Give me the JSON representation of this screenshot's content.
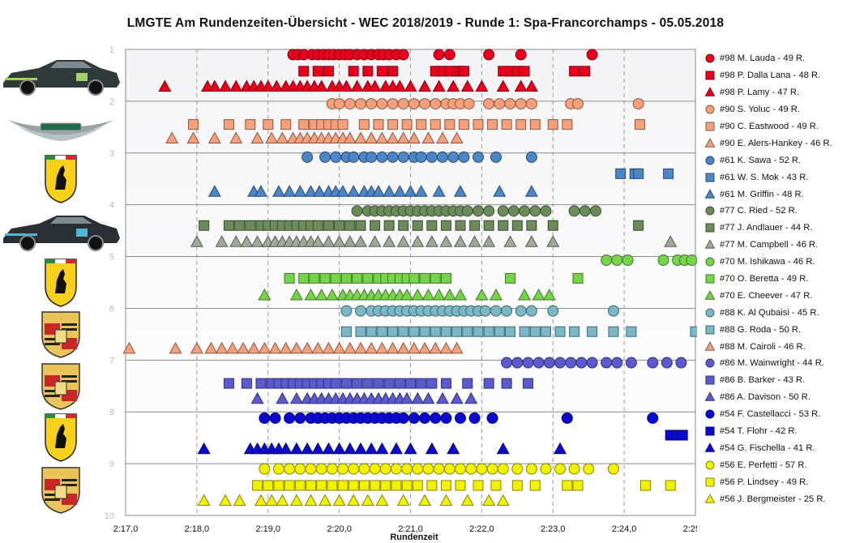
{
  "chart_data": {
    "type": "scatter",
    "title": "LMGTE  Am  Rundenzeiten-Übersicht   - WEC 2018/2019   - Runde  1:  Spa-Francorchamps   - 05.05.2018",
    "xlabel": "Rundenzeit",
    "ylabel": "",
    "x_ticks": [
      "2:17,0",
      "2:18,0",
      "2:19,0",
      "2:20,0",
      "2:21,0",
      "2:22,0",
      "2:23,0",
      "2:24,0",
      "2:25,0"
    ],
    "xlim_seconds": [
      137,
      145
    ],
    "y_ticks": [
      "1",
      "2",
      "3",
      "4",
      "5",
      "6",
      "7",
      "8",
      "9",
      "10"
    ],
    "ylim": [
      10,
      1
    ],
    "grid": "dashed-vertical, solid-horizontal",
    "legend_position": "right",
    "series": [
      {
        "name": "#98 M. Lauda - 49 R.",
        "marker": "circle",
        "color": "#e8001c",
        "row": 1.1,
        "x": [
          139.35,
          139.42,
          139.5,
          139.62,
          139.7,
          139.78,
          139.85,
          139.92,
          140.0,
          140.08,
          140.15,
          140.25,
          140.35,
          140.45,
          140.55,
          140.62,
          140.7,
          140.8,
          140.9,
          141.4,
          141.55,
          142.1,
          142.55,
          143.55
        ]
      },
      {
        "name": "#98 P. Dalla Lana - 48 R.",
        "marker": "square",
        "color": "#e8001c",
        "row": 1.42,
        "x": [
          139.5,
          139.7,
          139.85,
          140.2,
          140.4,
          140.6,
          140.75,
          141.35,
          141.45,
          141.55,
          141.65,
          141.7,
          141.75,
          142.3,
          142.4,
          142.5,
          142.6,
          143.3,
          143.45
        ]
      },
      {
        "name": "#98 P. Lamy - 47 R.",
        "marker": "triangle",
        "color": "#e8001c",
        "row": 1.72,
        "x": [
          137.55,
          138.15,
          138.25,
          138.4,
          138.55,
          138.7,
          138.8,
          138.9,
          139.0,
          139.12,
          139.25,
          139.35,
          139.45,
          139.55,
          139.65,
          139.75,
          139.9,
          140.0,
          140.1,
          140.25,
          140.4,
          140.5,
          140.65,
          140.75,
          140.85,
          141.0,
          141.2,
          141.4,
          141.6,
          141.8,
          142.0,
          142.3,
          142.55,
          142.7
        ]
      },
      {
        "name": "#90 S. Yoluc - 49 R.",
        "marker": "circle",
        "color": "#f5a07a",
        "row": 2.05,
        "x": [
          139.9,
          140.0,
          140.15,
          140.3,
          140.45,
          140.6,
          140.75,
          140.9,
          141.05,
          141.2,
          141.35,
          141.5,
          141.6,
          141.7,
          141.82,
          142.1,
          142.25,
          142.4,
          142.55,
          142.7,
          143.25,
          143.35,
          144.2
        ]
      },
      {
        "name": "#90 C. Eastwood - 49 R.",
        "marker": "square",
        "color": "#f5a07a",
        "row": 2.45,
        "x": [
          137.95,
          138.45,
          138.75,
          139.0,
          139.25,
          139.5,
          139.65,
          139.75,
          139.85,
          139.95,
          140.05,
          140.35,
          140.55,
          140.75,
          140.95,
          141.15,
          141.35,
          141.55,
          141.75,
          141.95,
          142.15,
          142.35,
          142.55,
          142.75,
          143.0,
          143.2,
          144.22
        ]
      },
      {
        "name": "#90 E. Alers-Hankey - 46 R.",
        "marker": "triangle",
        "color": "#f5a07a",
        "row": 2.72,
        "x": [
          137.65,
          137.95,
          138.25,
          138.55,
          138.85,
          139.05,
          139.2,
          139.35,
          139.45,
          139.55,
          139.65,
          139.75,
          139.85,
          139.95,
          140.05,
          140.15,
          140.3,
          140.45,
          140.6,
          140.75,
          140.9,
          141.05,
          141.25,
          141.45,
          141.65
        ]
      },
      {
        "name": "#61 K. Sawa - 52 R.",
        "marker": "circle",
        "color": "#4a86c8",
        "row": 3.08,
        "x": [
          139.55,
          139.8,
          139.95,
          140.1,
          140.2,
          140.35,
          140.45,
          140.6,
          140.75,
          140.9,
          141.05,
          141.15,
          141.3,
          141.45,
          141.6,
          141.75,
          141.95,
          142.2,
          142.7
        ]
      },
      {
        "name": "#61 W. S. Mok - 43 R.",
        "marker": "square",
        "color": "#4a86c8",
        "row": 3.4,
        "x": [
          143.95,
          144.15,
          144.2,
          144.62
        ]
      },
      {
        "name": "#61 M. Griffin - 48 R.",
        "marker": "triangle",
        "color": "#4a86c8",
        "row": 3.75,
        "x": [
          138.25,
          138.8,
          138.9,
          139.15,
          139.3,
          139.45,
          139.6,
          139.72,
          139.85,
          139.95,
          140.05,
          140.2,
          140.35,
          140.45,
          140.55,
          140.7,
          140.85,
          141.0,
          141.15,
          141.4,
          141.7,
          142.25,
          142.7
        ]
      },
      {
        "name": "#77 C. Ried - 52 R.",
        "marker": "circle",
        "color": "#6b8c58",
        "row": 4.12,
        "x": [
          140.25,
          140.4,
          140.5,
          140.6,
          140.7,
          140.8,
          140.9,
          141.0,
          141.1,
          141.2,
          141.3,
          141.4,
          141.5,
          141.6,
          141.7,
          141.8,
          141.95,
          142.1,
          142.3,
          142.45,
          142.6,
          142.75,
          142.9,
          143.3,
          143.45,
          143.6
        ]
      },
      {
        "name": "#77 J. Andlauer - 44 R.",
        "marker": "square",
        "color": "#6b8c58",
        "row": 4.4,
        "x": [
          138.1,
          138.45,
          138.6,
          138.75,
          138.9,
          139.0,
          139.1,
          139.2,
          139.3,
          139.4,
          139.5,
          139.6,
          139.7,
          139.85,
          140.0,
          140.15,
          140.3,
          140.5,
          140.7,
          140.9,
          141.1,
          141.3,
          141.5,
          141.7,
          141.9,
          142.1,
          142.3,
          142.5,
          142.7,
          143.0,
          144.2
        ]
      },
      {
        "name": "#77 M. Campbell - 46 R.",
        "marker": "triangle",
        "color": "#a0a898",
        "row": 4.72,
        "x": [
          138.0,
          138.35,
          138.55,
          138.7,
          138.85,
          139.0,
          139.1,
          139.2,
          139.3,
          139.4,
          139.5,
          139.6,
          139.7,
          139.85,
          140.0,
          140.15,
          140.3,
          140.5,
          140.7,
          140.9,
          141.1,
          141.3,
          141.5,
          141.7,
          141.9,
          142.1,
          142.4,
          142.7,
          143.0,
          144.65
        ]
      },
      {
        "name": "#70 M. Ishikawa - 46 R.",
        "marker": "circle",
        "color": "#76d44a",
        "row": 5.07,
        "x": [
          143.75,
          143.9,
          144.05,
          144.55,
          144.75,
          144.85,
          144.95
        ]
      },
      {
        "name": "#70 O. Beretta - 49 R.",
        "marker": "square",
        "color": "#76d44a",
        "row": 5.42,
        "x": [
          139.3,
          139.5,
          139.65,
          139.8,
          139.95,
          140.1,
          140.25,
          140.4,
          140.55,
          140.65,
          140.75,
          140.85,
          140.95,
          141.05,
          141.2,
          141.35,
          141.5,
          142.4,
          143.35
        ]
      },
      {
        "name": "#70 E. Cheever - 47 R.",
        "marker": "triangle",
        "color": "#76d44a",
        "row": 5.75,
        "x": [
          138.95,
          139.4,
          139.6,
          139.75,
          139.9,
          140.05,
          140.15,
          140.25,
          140.35,
          140.45,
          140.55,
          140.65,
          140.75,
          140.85,
          140.95,
          141.1,
          141.25,
          141.4,
          141.55,
          141.7,
          142.0,
          142.2,
          142.6,
          142.8,
          142.95
        ]
      },
      {
        "name": "#88 K. Al Qubaisi - 45 R.",
        "marker": "circle",
        "color": "#7ab8c8",
        "row": 6.05,
        "x": [
          140.1,
          140.3,
          140.45,
          140.55,
          140.65,
          140.75,
          140.85,
          140.95,
          141.05,
          141.15,
          141.25,
          141.35,
          141.45,
          141.55,
          141.65,
          141.75,
          141.85,
          141.95,
          142.05,
          142.2,
          142.35,
          142.55,
          142.7,
          143.0,
          143.85
        ]
      },
      {
        "name": "#88 G. Roda - 50 R.",
        "marker": "square",
        "color": "#7ab8c8",
        "row": 6.45,
        "x": [
          140.1,
          140.3,
          140.45,
          140.6,
          140.75,
          140.9,
          141.05,
          141.2,
          141.35,
          141.5,
          141.65,
          141.8,
          141.95,
          142.1,
          142.25,
          142.4,
          142.6,
          142.75,
          142.9,
          143.1,
          143.3,
          143.55,
          143.85,
          144.1,
          145.0
        ]
      },
      {
        "name": "#88 M. Cairoli - 46 R.",
        "marker": "triangle",
        "color": "#f5a07a",
        "row": 6.78,
        "x": [
          137.05,
          137.7,
          138.0,
          138.2,
          138.35,
          138.5,
          138.65,
          138.8,
          138.95,
          139.1,
          139.25,
          139.4,
          139.55,
          139.7,
          139.85,
          140.0,
          140.15,
          140.3,
          140.45,
          140.6,
          140.75,
          140.9,
          141.05,
          141.2,
          141.35,
          141.5,
          141.65
        ]
      },
      {
        "name": "#86 M. Wainwright - 44 R.",
        "marker": "circle",
        "color": "#5b5bd0",
        "row": 7.05,
        "x": [
          142.35,
          142.5,
          142.65,
          142.8,
          142.95,
          143.1,
          143.25,
          143.4,
          143.55,
          143.75,
          143.9,
          144.1,
          144.4,
          144.6,
          144.8
        ]
      },
      {
        "name": "#86 B. Barker - 43 R.",
        "marker": "square",
        "color": "#5b5bd0",
        "row": 7.45,
        "x": [
          138.45,
          138.7,
          138.9,
          139.05,
          139.15,
          139.25,
          139.35,
          139.45,
          139.55,
          139.65,
          139.75,
          139.85,
          139.95,
          140.1,
          140.25,
          140.4,
          140.55,
          140.7,
          140.85,
          141.0,
          141.15,
          141.3,
          141.5,
          141.8,
          142.1,
          142.35,
          142.65
        ]
      },
      {
        "name": "#86 A. Davison - 50 R.",
        "marker": "triangle",
        "color": "#5b5bd0",
        "row": 7.75,
        "x": [
          138.85,
          139.2,
          139.4,
          139.55,
          139.65,
          139.75,
          139.85,
          139.95,
          140.05,
          140.15,
          140.25,
          140.35,
          140.45,
          140.55,
          140.65,
          140.75,
          140.85,
          140.95,
          141.1,
          141.25,
          141.45,
          141.65,
          141.85
        ]
      },
      {
        "name": "#54 F. Castellacci - 53 R.",
        "marker": "circle",
        "color": "#0a0ad0",
        "row": 8.12,
        "x": [
          138.95,
          139.1,
          139.3,
          139.45,
          139.6,
          139.7,
          139.8,
          139.9,
          140.0,
          140.1,
          140.2,
          140.3,
          140.4,
          140.5,
          140.6,
          140.7,
          140.8,
          140.9,
          141.05,
          141.2,
          141.35,
          141.5,
          141.7,
          141.9,
          142.15,
          143.2,
          144.4
        ]
      },
      {
        "name": "#54 T. Flohr - 42 R.",
        "marker": "square",
        "color": "#0a0ad0",
        "row": 8.45,
        "x": [
          144.65,
          144.75,
          144.82
        ]
      },
      {
        "name": "#54 G. Fischella - 41 R.",
        "marker": "triangle",
        "color": "#0a0ad0",
        "row": 8.72,
        "x": [
          138.1,
          138.75,
          138.85,
          138.95,
          139.05,
          139.15,
          139.25,
          139.4,
          139.55,
          139.7,
          139.85,
          140.0,
          140.15,
          140.3,
          140.45,
          140.6,
          140.8,
          141.0,
          141.3,
          141.6,
          142.3,
          143.1
        ]
      },
      {
        "name": "#56 E. Perfetti - 57 R.",
        "marker": "circle",
        "color": "#f2f200",
        "row": 9.1,
        "x": [
          138.95,
          139.15,
          139.3,
          139.45,
          139.6,
          139.75,
          139.9,
          140.05,
          140.2,
          140.35,
          140.5,
          140.65,
          140.8,
          140.95,
          141.1,
          141.25,
          141.4,
          141.55,
          141.7,
          141.85,
          142.0,
          142.15,
          142.3,
          142.5,
          142.7,
          142.9,
          143.1,
          143.3,
          143.5,
          143.85
        ]
      },
      {
        "name": "#56 P. Lindsey - 49 R.",
        "marker": "square",
        "color": "#f2f200",
        "row": 9.42,
        "x": [
          138.85,
          139.0,
          139.15,
          139.3,
          139.45,
          139.6,
          139.75,
          139.9,
          140.05,
          140.2,
          140.35,
          140.5,
          140.65,
          140.8,
          140.95,
          141.1,
          141.3,
          141.5,
          141.7,
          141.95,
          142.2,
          142.5,
          142.75,
          143.2,
          143.35,
          144.3,
          144.65
        ]
      },
      {
        "name": "#56 J. Bergmeister - 25 R.",
        "marker": "triangle",
        "color": "#f2f200",
        "row": 9.72,
        "x": [
          138.1,
          138.4,
          138.6,
          138.9,
          139.05,
          139.2,
          139.4,
          139.6,
          139.8,
          140.0,
          140.2,
          140.4,
          140.6,
          140.9,
          141.2,
          141.5,
          141.8,
          142.1,
          142.3
        ]
      }
    ]
  },
  "logos": [
    {
      "icon": "aston-martin-race-car-icon",
      "row_center": 1.5
    },
    {
      "icon": "aston-martin-wings-icon",
      "row_center": 2.5
    },
    {
      "icon": "ferrari-shield-icon",
      "row_center": 3.5
    },
    {
      "icon": "porsche-race-car-icon",
      "row_center": 4.5
    },
    {
      "icon": "ferrari-shield-icon",
      "row_center": 5.5
    },
    {
      "icon": "porsche-crest-icon",
      "row_center": 6.5
    },
    {
      "icon": "porsche-crest-icon",
      "row_center": 7.5
    },
    {
      "icon": "ferrari-shield-icon",
      "row_center": 8.5
    },
    {
      "icon": "porsche-crest-icon",
      "row_center": 9.5
    }
  ]
}
